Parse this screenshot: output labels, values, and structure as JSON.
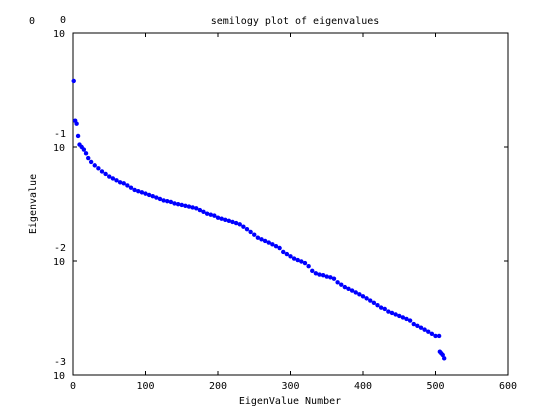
{
  "chart_data": {
    "type": "scatter",
    "title": "semilogy plot of eigenvalues",
    "xlabel": "EigenValue Number",
    "ylabel": "Eigenvalue",
    "xlim": [
      0,
      600
    ],
    "ylim": [
      0.001,
      1
    ],
    "yscale": "log",
    "grid": false,
    "legend": "none",
    "marker_color": "#0000ff",
    "x_ticks": [
      "0",
      "100",
      "200",
      "300",
      "400",
      "500",
      "600"
    ],
    "y_ticks": [
      {
        "base": "10",
        "exp": "0",
        "value": 1
      },
      {
        "base": "10",
        "exp": "-1",
        "value": 0.1
      },
      {
        "base": "10",
        "exp": "-2",
        "value": 0.01
      },
      {
        "base": "10",
        "exp": "-3",
        "value": 0.001
      }
    ],
    "corner_label": "0",
    "series": [
      {
        "points": [
          [
            1,
            0.38
          ],
          [
            3,
            0.17
          ],
          [
            5,
            0.16
          ],
          [
            7,
            0.125
          ],
          [
            9,
            0.105
          ],
          [
            12,
            0.1
          ],
          [
            15,
            0.095
          ],
          [
            18,
            0.088
          ],
          [
            21,
            0.08
          ],
          [
            25,
            0.074
          ],
          [
            30,
            0.069
          ],
          [
            35,
            0.065
          ],
          [
            40,
            0.061
          ],
          [
            45,
            0.058
          ],
          [
            50,
            0.055
          ],
          [
            55,
            0.053
          ],
          [
            60,
            0.051
          ],
          [
            65,
            0.049
          ],
          [
            70,
            0.048
          ],
          [
            75,
            0.046
          ],
          [
            80,
            0.044
          ],
          [
            85,
            0.042
          ],
          [
            90,
            0.041
          ],
          [
            95,
            0.04
          ],
          [
            100,
            0.039
          ],
          [
            105,
            0.038
          ],
          [
            110,
            0.037
          ],
          [
            115,
            0.036
          ],
          [
            120,
            0.035
          ],
          [
            125,
            0.034
          ],
          [
            130,
            0.0335
          ],
          [
            135,
            0.033
          ],
          [
            140,
            0.032
          ],
          [
            145,
            0.0315
          ],
          [
            150,
            0.031
          ],
          [
            155,
            0.0305
          ],
          [
            160,
            0.03
          ],
          [
            165,
            0.0295
          ],
          [
            170,
            0.029
          ],
          [
            175,
            0.028
          ],
          [
            180,
            0.027
          ],
          [
            185,
            0.026
          ],
          [
            190,
            0.0255
          ],
          [
            195,
            0.025
          ],
          [
            200,
            0.024
          ],
          [
            205,
            0.0235
          ],
          [
            210,
            0.023
          ],
          [
            215,
            0.0225
          ],
          [
            220,
            0.022
          ],
          [
            225,
            0.0215
          ],
          [
            230,
            0.021
          ],
          [
            235,
            0.02
          ],
          [
            240,
            0.019
          ],
          [
            245,
            0.018
          ],
          [
            250,
            0.017
          ],
          [
            255,
            0.016
          ],
          [
            260,
            0.0155
          ],
          [
            265,
            0.015
          ],
          [
            270,
            0.0145
          ],
          [
            275,
            0.014
          ],
          [
            280,
            0.0135
          ],
          [
            285,
            0.013
          ],
          [
            290,
            0.012
          ],
          [
            295,
            0.0115
          ],
          [
            300,
            0.011
          ],
          [
            305,
            0.0105
          ],
          [
            310,
            0.0102
          ],
          [
            315,
            0.0099
          ],
          [
            320,
            0.0096
          ],
          [
            325,
            0.009
          ],
          [
            330,
            0.0082
          ],
          [
            335,
            0.0078
          ],
          [
            340,
            0.0076
          ],
          [
            345,
            0.0075
          ],
          [
            350,
            0.0073
          ],
          [
            355,
            0.0072
          ],
          [
            360,
            0.007
          ],
          [
            365,
            0.0065
          ],
          [
            370,
            0.0062
          ],
          [
            375,
            0.0059
          ],
          [
            380,
            0.0057
          ],
          [
            385,
            0.0055
          ],
          [
            390,
            0.0053
          ],
          [
            395,
            0.0051
          ],
          [
            400,
            0.0049
          ],
          [
            405,
            0.0047
          ],
          [
            410,
            0.0045
          ],
          [
            415,
            0.0043
          ],
          [
            420,
            0.0041
          ],
          [
            425,
            0.0039
          ],
          [
            430,
            0.0038
          ],
          [
            435,
            0.0036
          ],
          [
            440,
            0.0035
          ],
          [
            445,
            0.0034
          ],
          [
            450,
            0.0033
          ],
          [
            455,
            0.0032
          ],
          [
            460,
            0.0031
          ],
          [
            465,
            0.003
          ],
          [
            470,
            0.0028
          ],
          [
            475,
            0.0027
          ],
          [
            480,
            0.0026
          ],
          [
            485,
            0.0025
          ],
          [
            490,
            0.0024
          ],
          [
            495,
            0.0023
          ],
          [
            500,
            0.0022
          ],
          [
            505,
            0.0022
          ],
          [
            506,
            0.0016
          ],
          [
            508,
            0.00155
          ],
          [
            510,
            0.0015
          ],
          [
            512,
            0.0014
          ]
        ]
      }
    ]
  }
}
